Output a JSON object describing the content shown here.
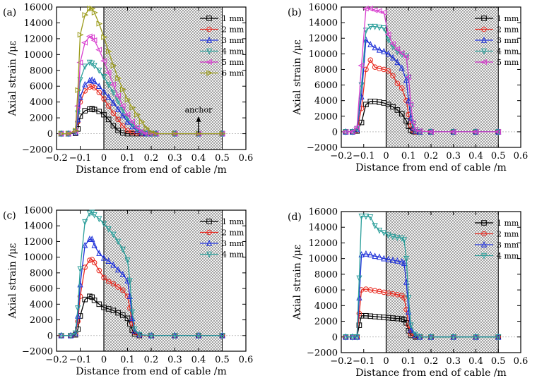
{
  "chart_data": [
    {
      "panel": "(a)",
      "type": "line",
      "xlabel": "Distance from end of cable /m",
      "ylabel": "Axial strain /με",
      "xlim": [
        -0.2,
        0.6
      ],
      "ylim": [
        -2000,
        16000
      ],
      "xticks": [
        "−0.2",
        "−0.1",
        "0",
        "0.1",
        "0.2",
        "0.3",
        "0.4",
        "0.5",
        "0.6"
      ],
      "yticks": [
        "−2000",
        "0",
        "2000",
        "4000",
        "6000",
        "8000",
        "10000",
        "12000",
        "14000",
        "16000"
      ],
      "shaded_region": [
        0,
        0.5
      ],
      "annotation": "anchor",
      "legend_position": "top-right",
      "x": [
        -0.18,
        -0.15,
        -0.12,
        -0.11,
        -0.1,
        -0.08,
        -0.06,
        -0.05,
        -0.04,
        -0.02,
        0,
        0.02,
        0.04,
        0.06,
        0.08,
        0.1,
        0.12,
        0.14,
        0.16,
        0.18,
        0.2,
        0.22,
        0.3,
        0.4,
        0.5
      ],
      "series": [
        {
          "name": "1 mm",
          "color": "#000000",
          "marker": "square",
          "values": [
            0,
            0,
            50,
            600,
            2200,
            2900,
            3100,
            3150,
            3050,
            2800,
            2400,
            1800,
            1000,
            400,
            100,
            0,
            0,
            0,
            0,
            0,
            0,
            0,
            0,
            0,
            0
          ]
        },
        {
          "name": "2 mm",
          "color": "#e8281e",
          "marker": "circle",
          "values": [
            0,
            0,
            100,
            1500,
            4000,
            5400,
            5900,
            6000,
            5800,
            5200,
            4400,
            3500,
            2600,
            1800,
            1000,
            400,
            150,
            50,
            0,
            0,
            0,
            0,
            0,
            0,
            0
          ]
        },
        {
          "name": "3 mm",
          "color": "#1c2fd8",
          "marker": "triangle-up",
          "values": [
            0,
            0,
            150,
            1800,
            4600,
            6200,
            6700,
            6800,
            6600,
            6000,
            5300,
            4600,
            3900,
            3100,
            2300,
            1500,
            900,
            400,
            100,
            0,
            0,
            0,
            0,
            0,
            0
          ]
        },
        {
          "name": "4 mm",
          "color": "#2a9e9a",
          "marker": "triangle-down",
          "values": [
            0,
            0,
            250,
            2600,
            6800,
            8500,
            9000,
            8900,
            8600,
            8000,
            7200,
            6200,
            5200,
            4100,
            3000,
            2000,
            1200,
            600,
            200,
            0,
            0,
            0,
            0,
            0,
            0
          ]
        },
        {
          "name": "5 mm",
          "color": "#d83fcf",
          "marker": "triangle-left",
          "values": [
            0,
            0,
            300,
            3500,
            9000,
            11500,
            12300,
            12200,
            11800,
            10600,
            9200,
            7700,
            6200,
            4800,
            3500,
            2400,
            1500,
            800,
            300,
            0,
            0,
            0,
            0,
            0,
            0
          ]
        },
        {
          "name": "6 mm",
          "color": "#9b9b1a",
          "marker": "triangle-right",
          "values": [
            0,
            0,
            400,
            5500,
            12500,
            15000,
            15800,
            15800,
            15300,
            13900,
            12200,
            10400,
            8600,
            7000,
            5600,
            4300,
            3300,
            2400,
            1500,
            700,
            200,
            0,
            0,
            0,
            0
          ]
        }
      ]
    },
    {
      "panel": "(b)",
      "type": "line",
      "xlabel": "Distance from end of cable /m",
      "ylabel": "Axial strain /με",
      "xlim": [
        -0.2,
        0.6
      ],
      "ylim": [
        -2000,
        16000
      ],
      "xticks": [
        "−0.2",
        "−0.1",
        "0",
        "0.1",
        "0.2",
        "0.3",
        "0.4",
        "0.5",
        "0.6"
      ],
      "yticks": [
        "−2000",
        "0",
        "2000",
        "4000",
        "6000",
        "8000",
        "10000",
        "12000",
        "14000",
        "16000"
      ],
      "shaded_region": [
        0,
        0.5
      ],
      "legend_position": "top-right",
      "x": [
        -0.18,
        -0.15,
        -0.13,
        -0.11,
        -0.09,
        -0.07,
        -0.05,
        -0.03,
        -0.01,
        0.01,
        0.03,
        0.05,
        0.07,
        0.09,
        0.1,
        0.11,
        0.12,
        0.13,
        0.15,
        0.2,
        0.3,
        0.4,
        0.5
      ],
      "series": [
        {
          "name": "1 mm",
          "color": "#000000",
          "marker": "square",
          "values": [
            0,
            0,
            100,
            1200,
            3500,
            3900,
            3900,
            3800,
            3700,
            3500,
            3200,
            2800,
            2300,
            1400,
            700,
            200,
            50,
            0,
            0,
            0,
            0,
            0,
            0
          ]
        },
        {
          "name": "2 mm",
          "color": "#e8281e",
          "marker": "circle",
          "values": [
            0,
            0,
            200,
            3000,
            8000,
            9200,
            8300,
            8100,
            8000,
            7800,
            7200,
            6200,
            5600,
            4000,
            2200,
            800,
            200,
            0,
            0,
            0,
            0,
            0,
            0
          ]
        },
        {
          "name": "3 mm",
          "color": "#1c2fd8",
          "marker": "triangle-up",
          "values": [
            0,
            0,
            300,
            4500,
            11800,
            11200,
            10800,
            10500,
            10300,
            10000,
            9500,
            8900,
            8200,
            6600,
            4000,
            1800,
            500,
            100,
            0,
            0,
            0,
            0,
            0
          ]
        },
        {
          "name": "4 mm",
          "color": "#2a9e9a",
          "marker": "triangle-down",
          "values": [
            0,
            0,
            400,
            6000,
            13000,
            13500,
            13500,
            13400,
            13300,
            11800,
            10900,
            10300,
            9900,
            9700,
            7000,
            3300,
            1000,
            200,
            0,
            0,
            0,
            0,
            0
          ]
        },
        {
          "name": "5 mm",
          "color": "#d83fcf",
          "marker": "triangle-left",
          "values": [
            0,
            0,
            600,
            8500,
            15800,
            15800,
            15600,
            15500,
            15300,
            12500,
            11300,
            10600,
            10100,
            9600,
            7000,
            3500,
            1200,
            300,
            100,
            0,
            0,
            0,
            0
          ]
        }
      ]
    },
    {
      "panel": "(c)",
      "type": "line",
      "xlabel": "Distance from end of cable /m",
      "ylabel": "Axial strain /με",
      "xlim": [
        -0.2,
        0.6
      ],
      "ylim": [
        -2000,
        16000
      ],
      "xticks": [
        "−0.2",
        "−0.1",
        "0",
        "0.1",
        "0.2",
        "0.3",
        "0.4",
        "0.5",
        "0.6"
      ],
      "yticks": [
        "−2000",
        "0",
        "2000",
        "4000",
        "6000",
        "8000",
        "10000",
        "12000",
        "14000",
        "16000"
      ],
      "shaded_region": [
        0,
        0.5
      ],
      "legend_position": "top-right",
      "x": [
        -0.18,
        -0.14,
        -0.12,
        -0.11,
        -0.1,
        -0.08,
        -0.06,
        -0.05,
        -0.04,
        -0.02,
        0,
        0.02,
        0.04,
        0.06,
        0.08,
        0.1,
        0.11,
        0.12,
        0.13,
        0.15,
        0.2,
        0.3,
        0.4,
        0.5
      ],
      "series": [
        {
          "name": "1 mm",
          "color": "#000000",
          "marker": "square",
          "values": [
            0,
            0,
            100,
            800,
            2500,
            4600,
            5000,
            4900,
            4500,
            4000,
            3600,
            3400,
            3200,
            2900,
            2600,
            2200,
            1500,
            700,
            200,
            0,
            0,
            0,
            0,
            0
          ]
        },
        {
          "name": "2 mm",
          "color": "#e8281e",
          "marker": "circle",
          "values": [
            0,
            0,
            200,
            1800,
            5000,
            8700,
            9600,
            9700,
            9300,
            8300,
            7400,
            6900,
            6600,
            6200,
            5800,
            5000,
            3500,
            1500,
            400,
            0,
            0,
            0,
            0,
            0
          ]
        },
        {
          "name": "3 mm",
          "color": "#1c2fd8",
          "marker": "triangle-up",
          "values": [
            0,
            0,
            250,
            2500,
            6500,
            11500,
            12300,
            12300,
            11500,
            10500,
            9900,
            9500,
            9000,
            8400,
            7800,
            7000,
            5000,
            2200,
            600,
            100,
            0,
            0,
            0,
            0
          ]
        },
        {
          "name": "4 mm",
          "color": "#2a9e9a",
          "marker": "triangle-down",
          "values": [
            0,
            0,
            300,
            3500,
            8500,
            14500,
            15600,
            15700,
            15400,
            14900,
            14300,
            13600,
            12900,
            12000,
            11000,
            9600,
            7000,
            3000,
            800,
            100,
            0,
            0,
            0,
            0
          ]
        }
      ]
    },
    {
      "panel": "(d)",
      "type": "line",
      "xlabel": "Distance from end of cable /m",
      "ylabel": "Axial strain /με",
      "xlim": [
        -0.2,
        0.6
      ],
      "ylim": [
        -2000,
        16000
      ],
      "xticks": [
        "−0.2",
        "−0.1",
        "0",
        "0.1",
        "0.2",
        "0.3",
        "0.4",
        "0.5",
        "0.6"
      ],
      "yticks": [
        "−2000",
        "0",
        "2000",
        "4000",
        "6000",
        "8000",
        "10000",
        "12000",
        "14000",
        "16000"
      ],
      "shaded_region": [
        0,
        0.5
      ],
      "legend_position": "top-right",
      "x": [
        -0.18,
        -0.15,
        -0.13,
        -0.12,
        -0.11,
        -0.09,
        -0.07,
        -0.05,
        -0.03,
        -0.01,
        0.01,
        0.03,
        0.05,
        0.07,
        0.08,
        0.09,
        0.1,
        0.11,
        0.13,
        0.15,
        0.2,
        0.3,
        0.4,
        0.5
      ],
      "series": [
        {
          "name": "1 mm",
          "color": "#000000",
          "marker": "square",
          "values": [
            0,
            0,
            0,
            1500,
            2700,
            2700,
            2650,
            2600,
            2550,
            2500,
            2450,
            2400,
            2350,
            2300,
            2200,
            1800,
            800,
            200,
            0,
            0,
            0,
            0,
            0,
            0
          ]
        },
        {
          "name": "2 mm",
          "color": "#e8281e",
          "marker": "circle",
          "values": [
            0,
            0,
            0,
            3000,
            6000,
            6100,
            6000,
            5900,
            5800,
            5700,
            5600,
            5500,
            5400,
            5300,
            5000,
            3500,
            1500,
            400,
            100,
            0,
            0,
            0,
            0,
            0
          ]
        },
        {
          "name": "3 mm",
          "color": "#1c2fd8",
          "marker": "triangle-up",
          "values": [
            0,
            0,
            0,
            5000,
            10500,
            10600,
            10500,
            10300,
            10200,
            10000,
            9900,
            9800,
            9700,
            9600,
            9400,
            7000,
            3200,
            900,
            200,
            0,
            0,
            0,
            0,
            0
          ]
        },
        {
          "name": "4 mm",
          "color": "#2a9e9a",
          "marker": "triangle-down",
          "values": [
            0,
            0,
            0,
            7500,
            15400,
            15400,
            15300,
            14200,
            13600,
            13300,
            13000,
            12800,
            12700,
            12600,
            12400,
            10000,
            5000,
            1500,
            300,
            0,
            0,
            0,
            0,
            0
          ]
        }
      ]
    }
  ]
}
